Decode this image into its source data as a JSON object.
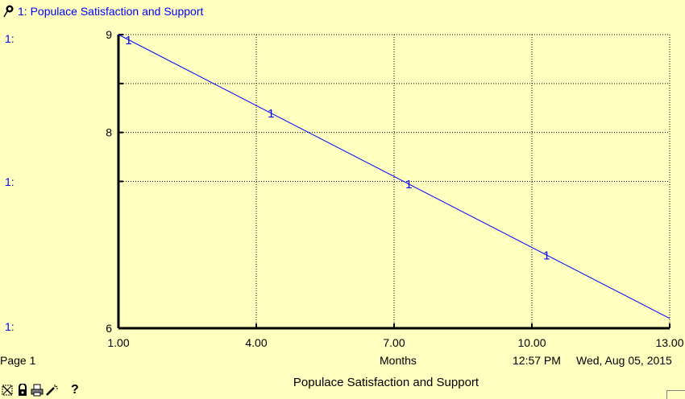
{
  "legend": {
    "text": "1: Populace Satisfaction and Support",
    "pin_icon": "pushpin-icon"
  },
  "axis_labels": {
    "top": "1:",
    "mid": "1:",
    "bottom": "1:"
  },
  "footer": {
    "page": "Page 1",
    "time_unit": "Months",
    "time": "12:57 PM",
    "date": "Wed, Aug 05, 2015",
    "title": "Populace Satisfaction and Support"
  },
  "toolbar": {
    "icons": [
      "scale-icon",
      "lock-icon",
      "print-icon",
      "magic-wand-icon"
    ],
    "help": "?"
  },
  "colors": {
    "background": "#ffffc0",
    "series": "#0000ff",
    "grid": "#000000"
  },
  "chart_data": {
    "type": "line",
    "title": "Populace Satisfaction and Support",
    "xlabel": "Months",
    "ylabel": "",
    "xlim": [
      1,
      13
    ],
    "ylim": [
      6,
      9
    ],
    "x_ticks": [
      "1.00",
      "4.00",
      "7.00",
      "10.00",
      "13.00"
    ],
    "x_tick_values": [
      1,
      4,
      7,
      10,
      13
    ],
    "y_ticks": [
      "9",
      "8",
      "6"
    ],
    "y_tick_values": [
      9,
      8,
      6
    ],
    "y_grid_values": [
      9,
      8.5,
      8,
      7.5
    ],
    "grid": true,
    "series": [
      {
        "name": "1",
        "color": "#0000ff",
        "x": [
          1,
          13
        ],
        "y": [
          9,
          6.1
        ],
        "marker_x": [
          1.2,
          4.3,
          7.3,
          10.3
        ]
      }
    ]
  }
}
